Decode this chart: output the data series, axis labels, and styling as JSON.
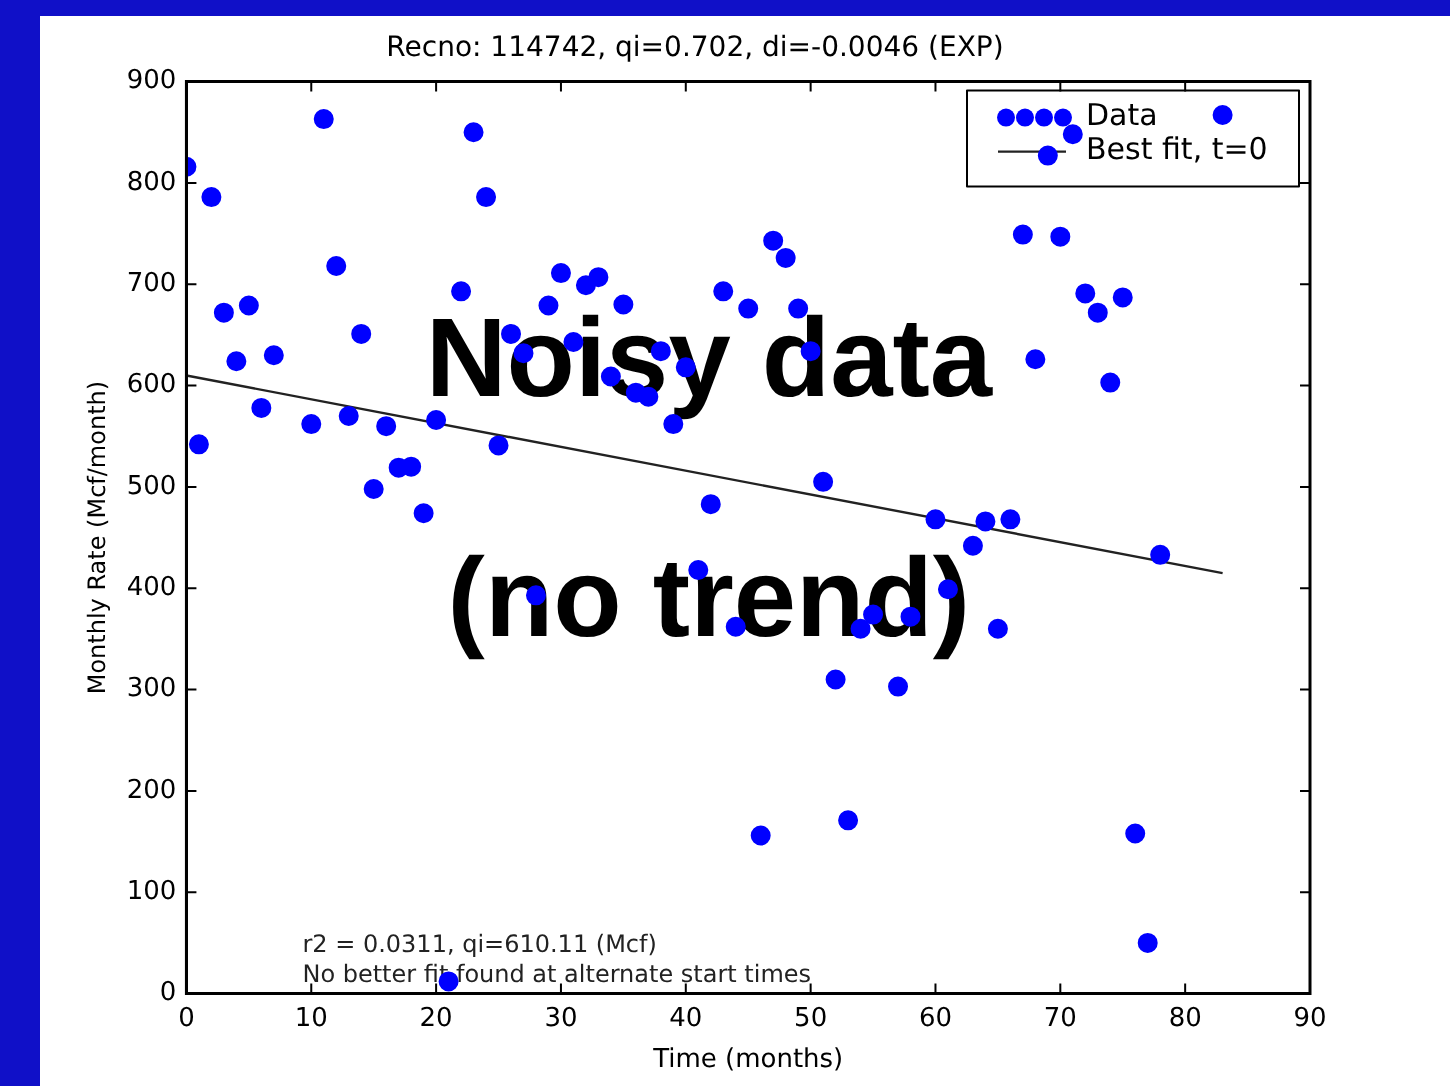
{
  "chart_data": {
    "type": "scatter",
    "title": "Recno: 114742, qi=0.702, di=-0.0046 (EXP)",
    "xlabel": "Time (months)",
    "ylabel": "Monthly Rate (Mcf/month)",
    "xlim": [
      0,
      90
    ],
    "xticks": [
      0,
      10,
      20,
      30,
      40,
      50,
      60,
      70,
      80,
      90
    ],
    "ylim": [
      0,
      900
    ],
    "yticks": [
      0,
      100,
      200,
      300,
      400,
      500,
      600,
      700,
      800,
      900
    ],
    "grid": false,
    "legend": "top right",
    "marker": "circle",
    "series": [
      {
        "name": "Data",
        "color": "#0000ff",
        "x": [
          0,
          1,
          2,
          3,
          4,
          5,
          6,
          7,
          10,
          11,
          12,
          13,
          14,
          15,
          16,
          17,
          18,
          19,
          20,
          21,
          22,
          23,
          24,
          25,
          26,
          27,
          28,
          29,
          30,
          31,
          32,
          33,
          34,
          35,
          36,
          37,
          38,
          39,
          40,
          41,
          42,
          43,
          44,
          45,
          46,
          47,
          48,
          49,
          50,
          51,
          52,
          53,
          54,
          55,
          57,
          58,
          60,
          61,
          63,
          64,
          65,
          66,
          67,
          68,
          69,
          70,
          71,
          72,
          73,
          74,
          75,
          76,
          77,
          78,
          83
        ],
        "values": [
          816,
          542,
          786,
          672,
          624,
          679,
          578,
          630,
          562,
          863,
          718,
          570,
          651,
          498,
          560,
          519,
          520,
          474,
          566,
          12,
          693,
          850,
          786,
          541,
          651,
          632,
          393,
          679,
          711,
          643,
          699,
          707,
          609,
          680,
          593,
          589,
          634,
          562,
          618,
          418,
          483,
          693,
          362,
          676,
          156,
          743,
          726,
          676,
          634,
          505,
          310,
          171,
          360,
          374,
          303,
          372,
          468,
          399,
          442,
          466,
          360,
          468,
          749,
          626,
          827,
          747,
          848,
          691,
          672,
          603,
          687,
          158,
          50,
          433,
          867
        ]
      },
      {
        "name": "Best fit, t=0",
        "type": "line",
        "marker": "none",
        "color": "#222222",
        "x": [
          0,
          83
        ],
        "values": [
          610,
          415
        ]
      }
    ],
    "annotations": [
      "r2 = 0.0311, qi=610.11 (Mcf)",
      "No better fit found at alternate start times",
      "Noisy data",
      "(no trend)"
    ]
  }
}
